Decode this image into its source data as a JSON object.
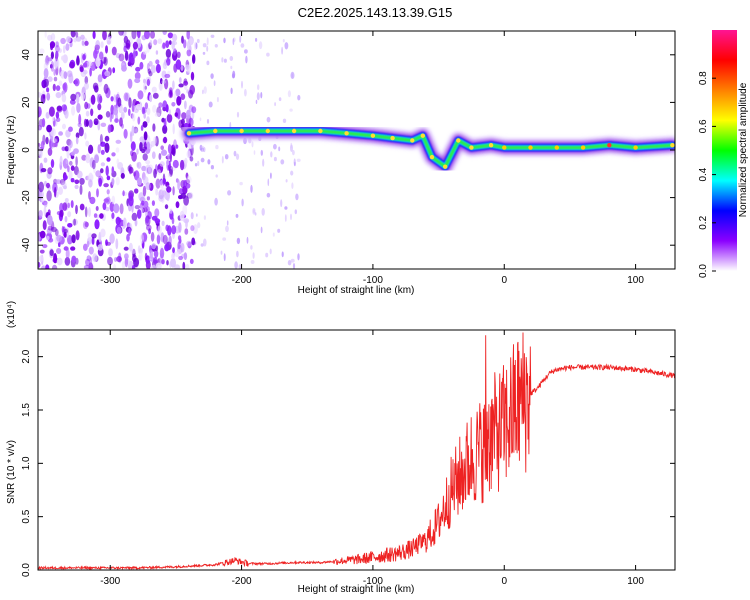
{
  "title": "C2E2.2025.143.13.39.G15",
  "chart_data": [
    {
      "type": "heatmap",
      "xlabel": "Height of straight line (km)",
      "ylabel": "Frequency (Hz)",
      "xlim": [
        -355,
        130
      ],
      "ylim": [
        -50,
        50
      ],
      "xticks": [
        -300,
        -200,
        -100,
        0,
        100
      ],
      "yticks": [
        -40,
        -20,
        0,
        20,
        40
      ],
      "colorbar": {
        "label": "Normalized spectral amplitude",
        "range": [
          0,
          1
        ],
        "ticks": [
          "0.0",
          "0.2",
          "0.4",
          "0.6",
          "0.8"
        ],
        "colors": [
          "#ffffff",
          "#8b00ff",
          "#0000ff",
          "#00ffff",
          "#00ff00",
          "#ffff00",
          "#ff8000",
          "#ff0000",
          "#ff1493"
        ]
      },
      "ridge": [
        {
          "x": -240,
          "y": 7
        },
        {
          "x": -220,
          "y": 8
        },
        {
          "x": -200,
          "y": 8
        },
        {
          "x": -180,
          "y": 8
        },
        {
          "x": -160,
          "y": 8
        },
        {
          "x": -140,
          "y": 8
        },
        {
          "x": -120,
          "y": 7
        },
        {
          "x": -100,
          "y": 6
        },
        {
          "x": -85,
          "y": 5
        },
        {
          "x": -70,
          "y": 4
        },
        {
          "x": -62,
          "y": 6
        },
        {
          "x": -55,
          "y": -3
        },
        {
          "x": -45,
          "y": -7
        },
        {
          "x": -35,
          "y": 4
        },
        {
          "x": -25,
          "y": 1
        },
        {
          "x": -10,
          "y": 2
        },
        {
          "x": 0,
          "y": 1
        },
        {
          "x": 20,
          "y": 1
        },
        {
          "x": 40,
          "y": 1
        },
        {
          "x": 60,
          "y": 1
        },
        {
          "x": 80,
          "y": 2
        },
        {
          "x": 100,
          "y": 1
        },
        {
          "x": 128,
          "y": 2
        }
      ]
    },
    {
      "type": "line",
      "xlabel": "Height of straight line (km)",
      "ylabel": "SNR (10 * v/v)",
      "y_multiplier": "(x10⁴)",
      "xlim": [
        -355,
        130
      ],
      "ylim": [
        0,
        2.25
      ],
      "xticks": [
        -300,
        -200,
        -100,
        0,
        100
      ],
      "yticks": [
        "0.0",
        "0.5",
        "1.0",
        "1.5",
        "2.0"
      ],
      "series": [
        {
          "color": "#ee2222",
          "x": [
            -355,
            -330,
            -300,
            -280,
            -250,
            -220,
            -205,
            -195,
            -180,
            -160,
            -140,
            -120,
            -110,
            -100,
            -90,
            -80,
            -70,
            -60,
            -55,
            -50,
            -45,
            -40,
            -35,
            -30,
            -25,
            -20,
            -15,
            -12,
            -10,
            -5,
            0,
            5,
            10,
            15,
            20,
            25,
            30,
            35,
            40,
            50,
            60,
            70,
            80,
            90,
            100,
            110,
            120,
            130
          ],
          "y": [
            0.02,
            0.02,
            0.02,
            0.02,
            0.03,
            0.05,
            0.09,
            0.06,
            0.06,
            0.07,
            0.07,
            0.09,
            0.1,
            0.12,
            0.14,
            0.16,
            0.2,
            0.28,
            0.35,
            0.45,
            0.6,
            0.75,
            0.85,
            0.95,
            1.05,
            1.1,
            1.15,
            1.2,
            1.25,
            1.3,
            1.35,
            1.45,
            1.55,
            1.6,
            1.65,
            1.7,
            1.78,
            1.85,
            1.88,
            1.9,
            1.9,
            1.9,
            1.9,
            1.89,
            1.88,
            1.86,
            1.84,
            1.82
          ]
        }
      ]
    }
  ]
}
